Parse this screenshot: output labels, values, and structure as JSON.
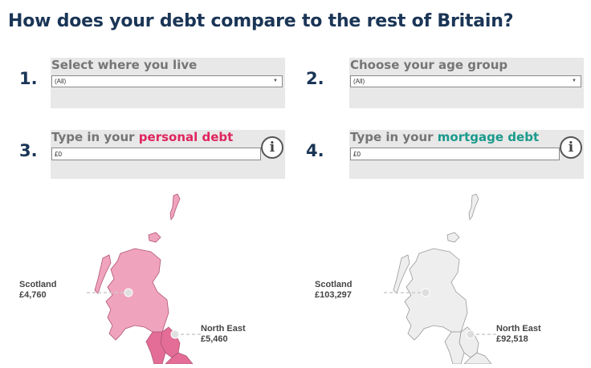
{
  "page": {
    "title": "How does your debt compare to the rest of Britain?"
  },
  "steps": [
    {
      "number": "1.",
      "label": "Select where you live",
      "selected": "(All)",
      "arrow": "▼"
    },
    {
      "number": "2.",
      "label": "Choose your age group",
      "selected": "(All)",
      "arrow": "▼"
    },
    {
      "number": "3.",
      "label_prefix": "Type in your ",
      "label_highlight": "personal debt",
      "value": "£0",
      "info": "i",
      "highlight_color": "#e0245e"
    },
    {
      "number": "4.",
      "label_prefix": "Type in your ",
      "label_highlight": "mortgage debt",
      "value": "£0",
      "info": "i",
      "highlight_color": "#1a9a8c"
    }
  ],
  "maps": {
    "personal": {
      "regions": [
        {
          "name": "Scotland",
          "value": "£4,760",
          "color": "#f0a3bd"
        },
        {
          "name": "North East",
          "value": "£5,460",
          "color": "#e36d96"
        }
      ]
    },
    "mortgage": {
      "regions": [
        {
          "name": "Scotland",
          "value": "£103,297",
          "color": "#eeeeee"
        },
        {
          "name": "North East",
          "value": "£92,518",
          "color": "#eeeeee"
        }
      ]
    }
  }
}
